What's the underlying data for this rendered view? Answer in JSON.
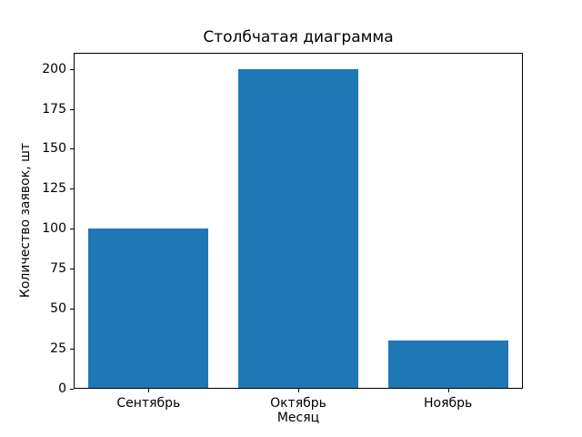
{
  "chart_data": {
    "type": "bar",
    "title": "Столбчатая диаграмма",
    "categories": [
      "Сентябрь",
      "Октябрь",
      "Ноябрь"
    ],
    "values": [
      100,
      200,
      30
    ],
    "xlabel": "Месяц",
    "ylabel": "Количество заявок, шт",
    "ylim": [
      0,
      210
    ],
    "yticks": [
      0,
      25,
      50,
      75,
      100,
      125,
      150,
      175,
      200
    ],
    "bar_color": "#1f77b4",
    "bar_width_fraction": 0.8,
    "grid": false,
    "legend": "none"
  }
}
